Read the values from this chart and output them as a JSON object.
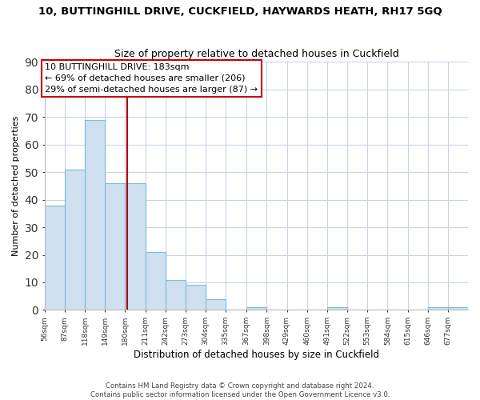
{
  "title": "10, BUTTINGHILL DRIVE, CUCKFIELD, HAYWARDS HEATH, RH17 5GQ",
  "subtitle": "Size of property relative to detached houses in Cuckfield",
  "xlabel": "Distribution of detached houses by size in Cuckfield",
  "ylabel": "Number of detached properties",
  "bar_edges": [
    56,
    87,
    118,
    149,
    180,
    211,
    242,
    273,
    304,
    335,
    367,
    398,
    429,
    460,
    491,
    522,
    553,
    584,
    615,
    646,
    677
  ],
  "bar_heights": [
    38,
    51,
    69,
    46,
    46,
    21,
    11,
    9,
    4,
    0,
    1,
    0,
    0,
    0,
    1,
    0,
    0,
    0,
    0,
    1,
    1
  ],
  "bar_color": "#cfe0f0",
  "bar_edgecolor": "#7abbe0",
  "vline_x": 183,
  "vline_color": "#aa0000",
  "ylim": [
    0,
    90
  ],
  "yticks": [
    0,
    10,
    20,
    30,
    40,
    50,
    60,
    70,
    80,
    90
  ],
  "annotation_lines": [
    "10 BUTTINGHILL DRIVE: 183sqm",
    "← 69% of detached houses are smaller (206)",
    "29% of semi-detached houses are larger (87) →"
  ],
  "footer_line1": "Contains HM Land Registry data © Crown copyright and database right 2024.",
  "footer_line2": "Contains public sector information licensed under the Open Government Licence v3.0.",
  "tick_labels": [
    "56sqm",
    "87sqm",
    "118sqm",
    "149sqm",
    "180sqm",
    "211sqm",
    "242sqm",
    "273sqm",
    "304sqm",
    "335sqm",
    "367sqm",
    "398sqm",
    "429sqm",
    "460sqm",
    "491sqm",
    "522sqm",
    "553sqm",
    "584sqm",
    "615sqm",
    "646sqm",
    "677sqm"
  ],
  "background_color": "#ffffff",
  "grid_color": "#c8d4e8"
}
